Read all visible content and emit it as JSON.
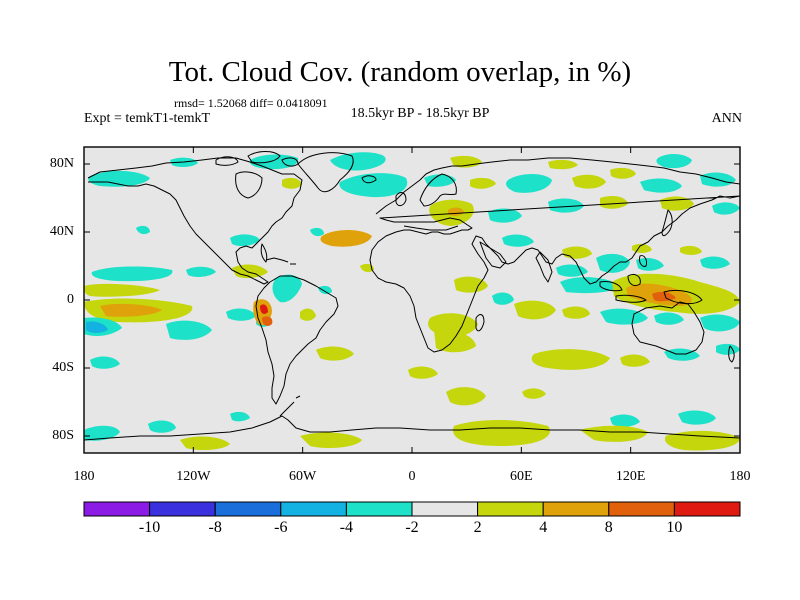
{
  "title": "Tot. Cloud Cov. (random overlap, in %)",
  "stats_text": "rmsd= 1.52068 diff= 0.0418091",
  "experiment_label": "Expt = temkT1-temkT",
  "period_label": "18.5kyr BP - 18.5kyr BP",
  "season_label": "ANN",
  "map": {
    "lon_range": [
      -180,
      180
    ],
    "lat_range": [
      -90,
      90
    ],
    "y_ticks": [
      {
        "label": "80N",
        "lat": 80
      },
      {
        "label": "40N",
        "lat": 40
      },
      {
        "label": "0",
        "lat": 0
      },
      {
        "label": "40S",
        "lat": -40
      },
      {
        "label": "80S",
        "lat": -80
      }
    ],
    "x_ticks": [
      {
        "label": "180",
        "lon": -180
      },
      {
        "label": "120W",
        "lon": -120
      },
      {
        "label": "60W",
        "lon": -60
      },
      {
        "label": "0",
        "lon": 0
      },
      {
        "label": "60E",
        "lon": 60
      },
      {
        "label": "120E",
        "lon": 120
      },
      {
        "label": "180",
        "lon": 180
      }
    ],
    "background_color": "#e6e6e6"
  },
  "colorbar": {
    "colors": [
      "#8c1be6",
      "#3a30dd",
      "#1a6fdb",
      "#14b1e3",
      "#1de1c8",
      "#e6e6e6",
      "#c5d60d",
      "#dfa20b",
      "#e0600c",
      "#df1a10"
    ],
    "labels": [
      "-10",
      "-8",
      "-6",
      "-4",
      "-2",
      "2",
      "4",
      "8",
      "10"
    ]
  }
}
